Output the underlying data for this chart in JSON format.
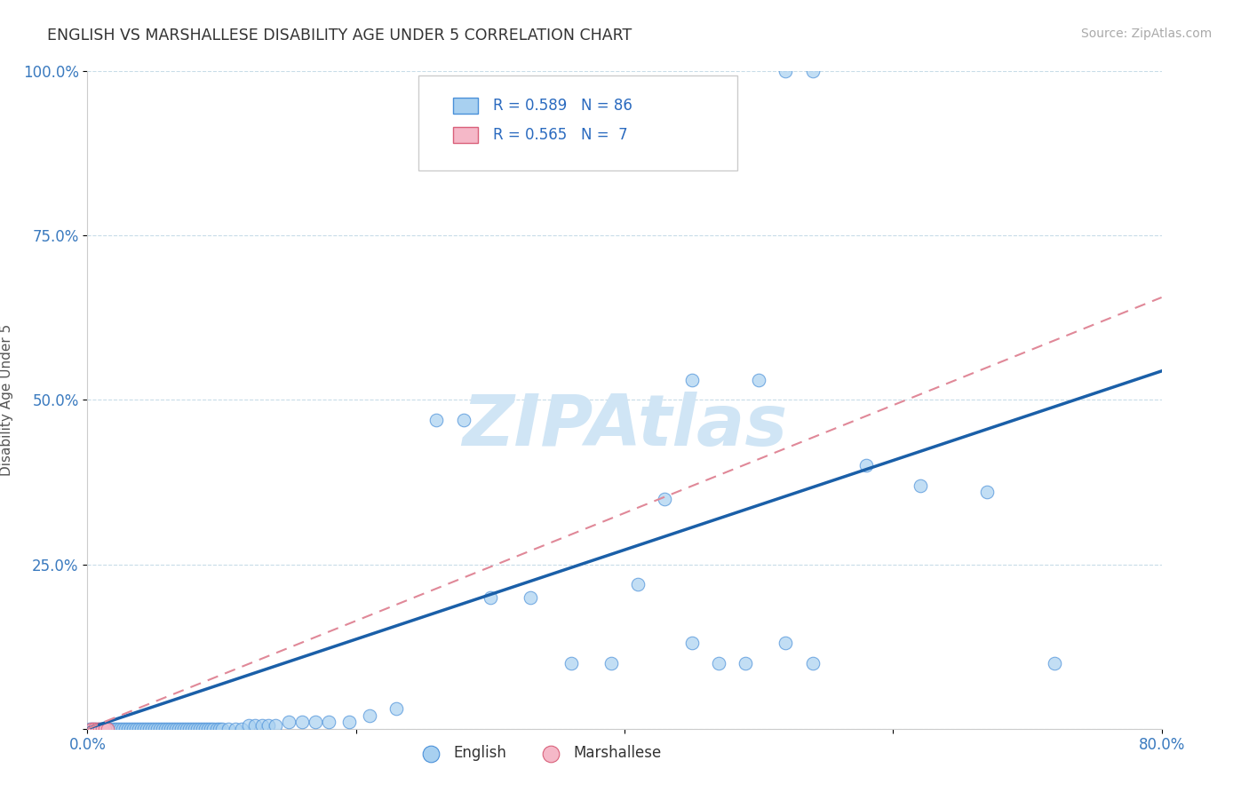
{
  "title": "ENGLISH VS MARSHALLESE DISABILITY AGE UNDER 5 CORRELATION CHART",
  "source": "Source: ZipAtlas.com",
  "ylabel": "Disability Age Under 5",
  "xlim": [
    0.0,
    0.8
  ],
  "ylim": [
    0.0,
    1.0
  ],
  "xticks": [
    0.0,
    0.2,
    0.4,
    0.6,
    0.8
  ],
  "xticklabels": [
    "0.0%",
    "",
    "",
    "",
    "80.0%"
  ],
  "yticks": [
    0.0,
    0.25,
    0.5,
    0.75,
    1.0
  ],
  "yticklabels": [
    "",
    "25.0%",
    "50.0%",
    "75.0%",
    "100.0%"
  ],
  "english_color": "#a8d0f0",
  "english_edge": "#4a90d9",
  "marshallese_color": "#f5b8c8",
  "marshallese_edge": "#d9607a",
  "trend_english_color": "#1a5fa8",
  "trend_marshallese_color": "#e08898",
  "watermark": "ZIPAtlas",
  "watermark_color": "#d0e5f5",
  "legend_label_english": "English",
  "legend_label_marshallese": "Marshallese",
  "R_english": 0.589,
  "N_english": 86,
  "R_marshallese": 0.565,
  "N_marshallese": 7,
  "eng_slope": 0.68,
  "eng_intercept": 0.0,
  "marsh_slope": 0.82,
  "marsh_intercept": 0.0,
  "english_x": [
    0.002,
    0.004,
    0.006,
    0.008,
    0.01,
    0.012,
    0.014,
    0.016,
    0.018,
    0.02,
    0.022,
    0.024,
    0.026,
    0.028,
    0.03,
    0.032,
    0.034,
    0.036,
    0.038,
    0.04,
    0.042,
    0.044,
    0.046,
    0.048,
    0.05,
    0.052,
    0.054,
    0.056,
    0.058,
    0.06,
    0.062,
    0.064,
    0.066,
    0.068,
    0.07,
    0.072,
    0.074,
    0.076,
    0.078,
    0.08,
    0.082,
    0.084,
    0.086,
    0.088,
    0.09,
    0.092,
    0.094,
    0.096,
    0.098,
    0.1,
    0.105,
    0.11,
    0.115,
    0.12,
    0.125,
    0.13,
    0.135,
    0.14,
    0.15,
    0.16,
    0.17,
    0.18,
    0.195,
    0.21,
    0.23,
    0.26,
    0.28,
    0.3,
    0.33,
    0.36,
    0.39,
    0.41,
    0.43,
    0.45,
    0.47,
    0.49,
    0.52,
    0.54,
    0.52,
    0.54,
    0.45,
    0.5,
    0.58,
    0.62,
    0.67,
    0.72
  ],
  "english_y": [
    0.0,
    0.0,
    0.0,
    0.0,
    0.0,
    0.0,
    0.0,
    0.0,
    0.0,
    0.0,
    0.0,
    0.0,
    0.0,
    0.0,
    0.0,
    0.0,
    0.0,
    0.0,
    0.0,
    0.0,
    0.0,
    0.0,
    0.0,
    0.0,
    0.0,
    0.0,
    0.0,
    0.0,
    0.0,
    0.0,
    0.0,
    0.0,
    0.0,
    0.0,
    0.0,
    0.0,
    0.0,
    0.0,
    0.0,
    0.0,
    0.0,
    0.0,
    0.0,
    0.0,
    0.0,
    0.0,
    0.0,
    0.0,
    0.0,
    0.0,
    0.0,
    0.0,
    0.0,
    0.005,
    0.005,
    0.005,
    0.005,
    0.005,
    0.01,
    0.01,
    0.01,
    0.01,
    0.01,
    0.02,
    0.03,
    0.47,
    0.47,
    0.2,
    0.2,
    0.1,
    0.1,
    0.22,
    0.35,
    0.13,
    0.1,
    0.1,
    0.13,
    0.1,
    1.0,
    1.0,
    0.53,
    0.53,
    0.4,
    0.37,
    0.36,
    0.1
  ],
  "marshallese_x": [
    0.003,
    0.005,
    0.007,
    0.009,
    0.011,
    0.013,
    0.015
  ],
  "marshallese_y": [
    0.0,
    0.0,
    0.0,
    0.0,
    0.0,
    0.0,
    0.0
  ]
}
